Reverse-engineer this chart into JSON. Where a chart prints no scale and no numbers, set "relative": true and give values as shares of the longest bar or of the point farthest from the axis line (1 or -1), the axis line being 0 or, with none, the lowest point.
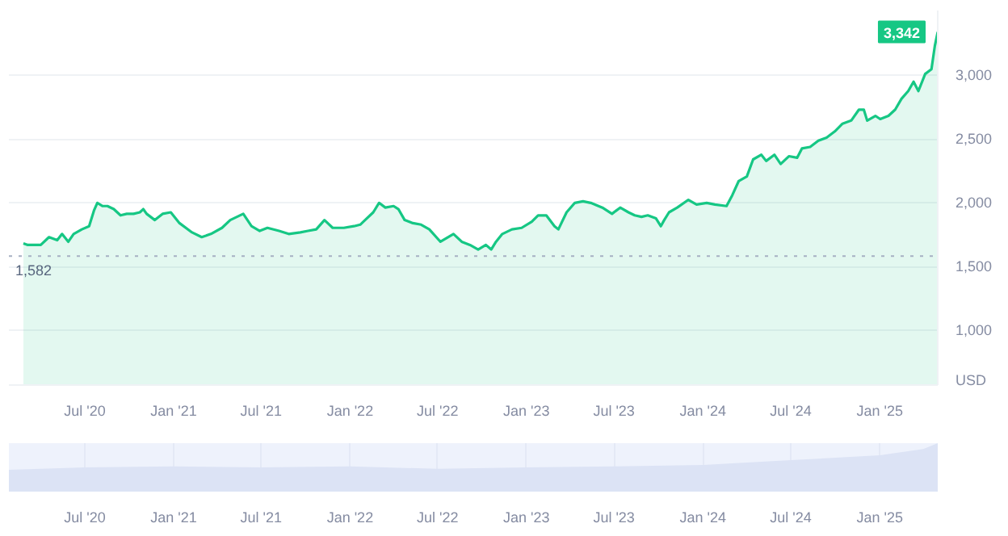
{
  "chart_data": [
    {
      "type": "area",
      "ylabel": "USD",
      "color": "#16c784",
      "x": [
        "2020-02-25",
        "2020-03-05",
        "2020-04-01",
        "2020-04-18",
        "2020-05-05",
        "2020-05-15",
        "2020-05-28",
        "2020-06-08",
        "2020-06-25",
        "2020-07-10",
        "2020-07-20",
        "2020-07-27",
        "2020-08-07",
        "2020-08-17",
        "2020-08-30",
        "2020-09-13",
        "2020-09-26",
        "2020-10-10",
        "2020-10-23",
        "2020-10-30",
        "2020-11-06",
        "2020-11-23",
        "2020-12-09",
        "2020-12-26",
        "2021-01-13",
        "2021-02-08",
        "2021-02-28",
        "2021-03-19",
        "2021-04-11",
        "2021-04-28",
        "2021-05-25",
        "2021-06-11",
        "2021-06-28",
        "2021-07-14",
        "2021-08-07",
        "2021-08-27",
        "2021-09-20",
        "2021-10-06",
        "2021-10-23",
        "2021-11-09",
        "2021-11-26",
        "2021-12-19",
        "2022-01-09",
        "2022-01-22",
        "2022-02-01",
        "2022-02-18",
        "2022-03-02",
        "2022-03-15",
        "2022-04-01",
        "2022-04-11",
        "2022-04-24",
        "2022-05-11",
        "2022-05-28",
        "2022-06-14",
        "2022-07-07",
        "2022-08-03",
        "2022-08-20",
        "2022-09-06",
        "2022-09-23",
        "2022-10-09",
        "2022-10-20",
        "2022-10-30",
        "2022-11-12",
        "2022-12-02",
        "2022-12-22",
        "2023-01-12",
        "2023-01-25",
        "2023-02-11",
        "2023-02-28",
        "2023-03-08",
        "2023-03-25",
        "2023-04-11",
        "2023-04-28",
        "2023-05-14",
        "2023-06-07",
        "2023-06-27",
        "2023-07-14",
        "2023-07-31",
        "2023-08-13",
        "2023-08-27",
        "2023-09-09",
        "2023-09-26",
        "2023-10-06",
        "2023-10-13",
        "2023-10-23",
        "2023-11-09",
        "2023-12-02",
        "2023-12-19",
        "2024-01-09",
        "2024-01-26",
        "2024-02-19",
        "2024-03-02",
        "2024-03-15",
        "2024-04-01",
        "2024-04-14",
        "2024-05-01",
        "2024-05-11",
        "2024-05-28",
        "2024-06-10",
        "2024-06-27",
        "2024-07-14",
        "2024-07-24",
        "2024-08-10",
        "2024-08-27",
        "2024-09-13",
        "2024-09-30",
        "2024-10-16",
        "2024-11-03",
        "2024-11-19",
        "2024-11-29",
        "2024-12-06",
        "2024-12-23",
        "2025-01-02",
        "2025-01-19",
        "2025-02-02",
        "2025-02-15",
        "2025-03-01",
        "2025-03-12",
        "2025-03-22",
        "2025-04-05",
        "2025-04-18",
        "2025-04-25",
        "2025-05-01"
      ],
      "values": [
        1682,
        1670,
        1670,
        1731,
        1707,
        1756,
        1695,
        1756,
        1792,
        1817,
        1939,
        2000,
        1975,
        1975,
        1951,
        1902,
        1914,
        1914,
        1926,
        1951,
        1914,
        1865,
        1914,
        1926,
        1841,
        1768,
        1731,
        1756,
        1804,
        1865,
        1914,
        1817,
        1780,
        1804,
        1780,
        1756,
        1768,
        1780,
        1792,
        1865,
        1804,
        1804,
        1817,
        1829,
        1865,
        1926,
        2000,
        1963,
        1975,
        1951,
        1865,
        1841,
        1829,
        1792,
        1695,
        1756,
        1695,
        1670,
        1634,
        1670,
        1634,
        1695,
        1756,
        1792,
        1804,
        1853,
        1902,
        1902,
        1817,
        1792,
        1926,
        2000,
        2012,
        2000,
        1963,
        1914,
        1963,
        1926,
        1902,
        1890,
        1902,
        1878,
        1817,
        1865,
        1926,
        1963,
        2024,
        1987,
        2000,
        1987,
        1975,
        2061,
        2170,
        2207,
        2341,
        2378,
        2329,
        2378,
        2305,
        2366,
        2354,
        2427,
        2439,
        2488,
        2512,
        2561,
        2622,
        2646,
        2732,
        2732,
        2646,
        2683,
        2658,
        2683,
        2732,
        2817,
        2878,
        2951,
        2878,
        3012,
        3049,
        3232,
        3342
      ],
      "xlim": [
        "2020-01-26",
        "2025-05-01"
      ],
      "ylim": [
        570,
        3510
      ],
      "xticks": [
        {
          "value": "2020-07-01",
          "label": "Jul '20"
        },
        {
          "value": "2021-01-01",
          "label": "Jan '21"
        },
        {
          "value": "2021-07-01",
          "label": "Jul '21"
        },
        {
          "value": "2022-01-01",
          "label": "Jan '22"
        },
        {
          "value": "2022-07-01",
          "label": "Jul '22"
        },
        {
          "value": "2023-01-01",
          "label": "Jan '23"
        },
        {
          "value": "2023-07-01",
          "label": "Jul '23"
        },
        {
          "value": "2024-01-01",
          "label": "Jan '24"
        },
        {
          "value": "2024-07-01",
          "label": "Jul '24"
        },
        {
          "value": "2025-01-01",
          "label": "Jan '25"
        }
      ],
      "yticks": [
        {
          "value": 1000,
          "label": "1,000"
        },
        {
          "value": 1500,
          "label": "1,500"
        },
        {
          "value": 2000,
          "label": "2,000"
        },
        {
          "value": 2500,
          "label": "2,500"
        },
        {
          "value": 3000,
          "label": "3,000"
        }
      ],
      "grid": "y",
      "ref_lines": [
        {
          "axis": "y",
          "value": 1582,
          "label": "1,582",
          "color": "#a6b0c3",
          "line_style": "dotted"
        }
      ],
      "annotations": [
        {
          "text": "3,342",
          "x": "2025-05-01",
          "y": 3342
        }
      ]
    },
    {
      "type": "area",
      "relative": true,
      "color": "#dce3f5",
      "x": [
        "2020-01-26",
        "2020-07-01",
        "2021-01-01",
        "2021-07-01",
        "2022-01-01",
        "2022-07-01",
        "2023-01-01",
        "2023-07-01",
        "2024-01-01",
        "2024-07-01",
        "2025-01-01",
        "2025-04-01",
        "2025-05-01"
      ],
      "values": [
        0.45,
        0.5,
        0.52,
        0.5,
        0.52,
        0.47,
        0.5,
        0.52,
        0.55,
        0.65,
        0.75,
        0.88,
        1
      ],
      "xlim": [
        "2020-01-26",
        "2025-05-01"
      ],
      "xticks": [
        {
          "value": "2020-07-01",
          "label": "Jul '20"
        },
        {
          "value": "2021-01-01",
          "label": "Jan '21"
        },
        {
          "value": "2021-07-01",
          "label": "Jul '21"
        },
        {
          "value": "2022-01-01",
          "label": "Jan '22"
        },
        {
          "value": "2022-07-01",
          "label": "Jul '22"
        },
        {
          "value": "2023-01-01",
          "label": "Jan '23"
        },
        {
          "value": "2023-07-01",
          "label": "Jul '23"
        },
        {
          "value": "2024-01-01",
          "label": "Jan '24"
        },
        {
          "value": "2024-07-01",
          "label": "Jul '24"
        },
        {
          "value": "2025-01-01",
          "label": "Jan '25"
        }
      ],
      "tick_labels": "x",
      "grid": "x"
    }
  ]
}
